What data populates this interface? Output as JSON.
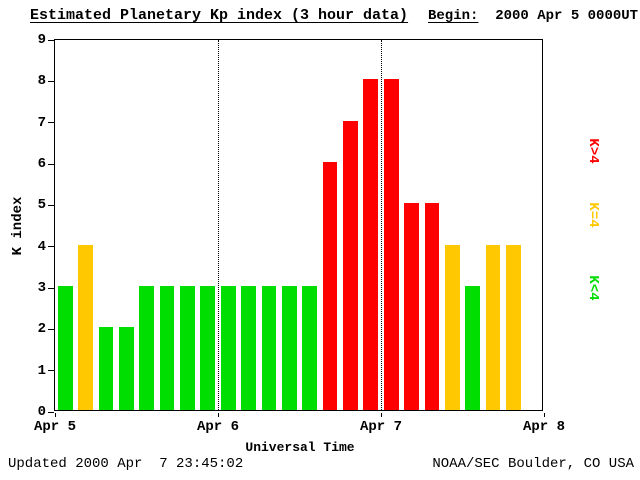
{
  "header": {
    "title": "Estimated Planetary Kp index (3 hour data)",
    "begin_label": "Begin:",
    "begin_value": "  2000 Apr 5 0000UT"
  },
  "footer": {
    "updated": "Updated 2000 Apr  7 23:45:02",
    "source": "NOAA/SEC Boulder, CO USA"
  },
  "chart_data": {
    "type": "bar",
    "title": "Estimated Planetary Kp index (3 hour data)",
    "xlabel": "Universal Time",
    "ylabel": "K index",
    "ylim": [
      0,
      9
    ],
    "yticks": [
      0,
      1,
      2,
      3,
      4,
      5,
      6,
      7,
      8,
      9
    ],
    "xticks": [
      "Apr 5",
      "Apr 6",
      "Apr 7",
      "Apr 8"
    ],
    "bar_interval_hours": 3,
    "bars_per_day": 8,
    "days": 3,
    "values": [
      3,
      4,
      2,
      2,
      3,
      3,
      3,
      3,
      3,
      3,
      3,
      3,
      3,
      6,
      7,
      8,
      8,
      5,
      5,
      4,
      3,
      4,
      4
    ],
    "color_rule": "green K<4, yellow K=4, red K>4",
    "colors": {
      "green": "#00dd00",
      "yellow": "#ffc800",
      "red": "#ff0000"
    },
    "legend": [
      {
        "label": "K>4",
        "color": "#ff0000"
      },
      {
        "label": "K=4",
        "color": "#ffc800"
      },
      {
        "label": "K<4",
        "color": "#00dd00"
      }
    ],
    "grid": "dotted vertical lines at day boundaries",
    "legend_position": "right, rotated 90deg"
  }
}
